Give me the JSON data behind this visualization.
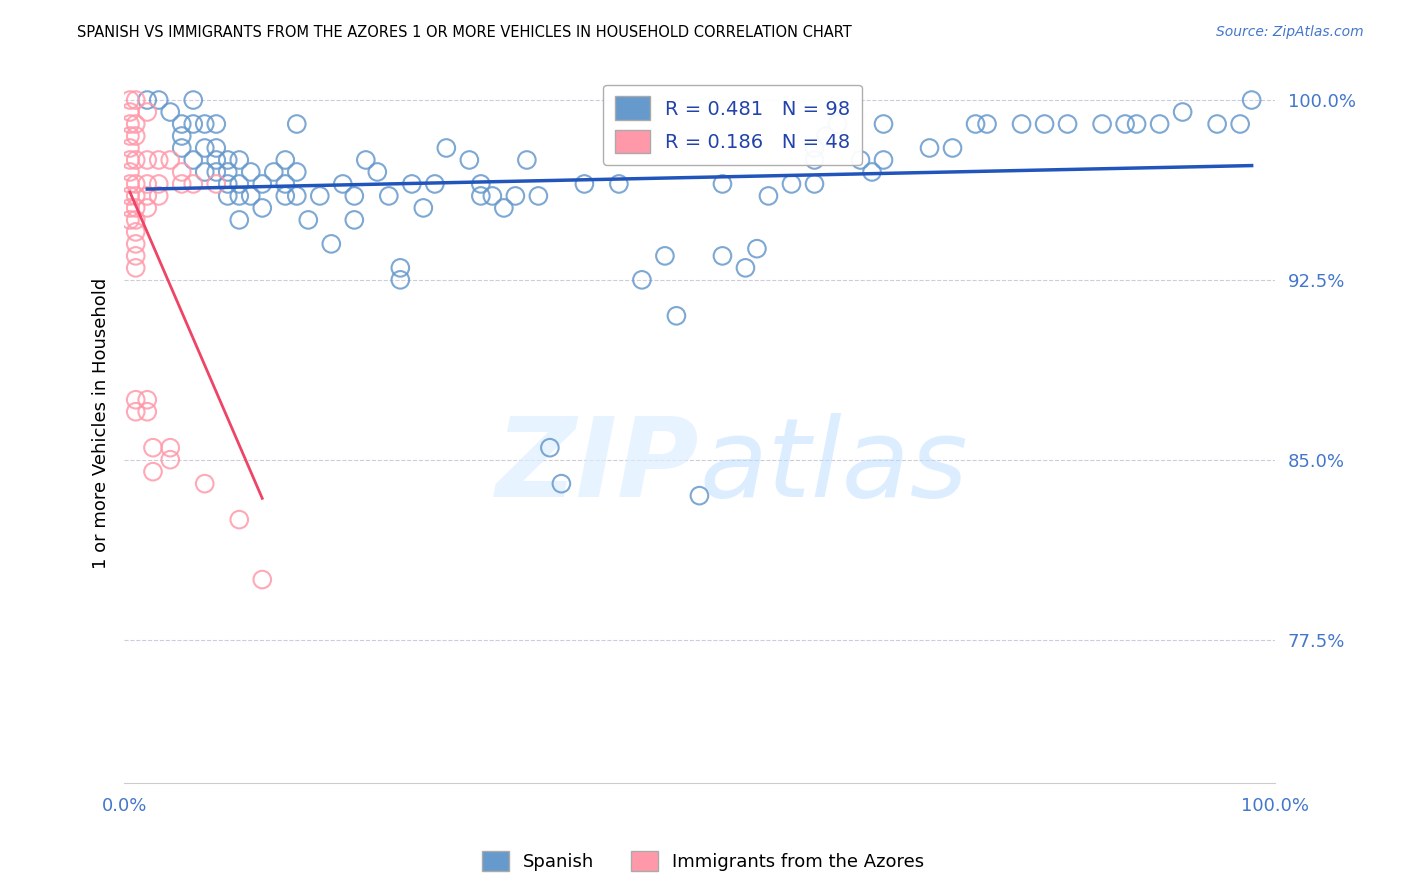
{
  "title": "SPANISH VS IMMIGRANTS FROM THE AZORES 1 OR MORE VEHICLES IN HOUSEHOLD CORRELATION CHART",
  "source": "Source: ZipAtlas.com",
  "ylabel": "1 or more Vehicles in Household",
  "ytick_labels": [
    "100.0%",
    "92.5%",
    "85.0%",
    "77.5%"
  ],
  "ytick_values": [
    1.0,
    0.925,
    0.85,
    0.775
  ],
  "xlim": [
    0.0,
    1.0
  ],
  "ylim": [
    0.715,
    1.015
  ],
  "legend_blue_label": "Spanish",
  "legend_pink_label": "Immigrants from the Azores",
  "R_blue": 0.481,
  "N_blue": 98,
  "R_pink": 0.186,
  "N_pink": 48,
  "blue_color": "#6699CC",
  "pink_color": "#FF99AA",
  "trendline_blue_color": "#2255BB",
  "trendline_pink_color": "#EE4466",
  "watermark_zip": "ZIP",
  "watermark_atlas": "atlas",
  "blue_scatter": [
    [
      0.02,
      1.0
    ],
    [
      0.03,
      1.0
    ],
    [
      0.04,
      0.995
    ],
    [
      0.05,
      0.99
    ],
    [
      0.05,
      0.985
    ],
    [
      0.05,
      0.98
    ],
    [
      0.06,
      1.0
    ],
    [
      0.06,
      0.99
    ],
    [
      0.06,
      0.975
    ],
    [
      0.07,
      0.97
    ],
    [
      0.07,
      0.98
    ],
    [
      0.07,
      0.99
    ],
    [
      0.08,
      0.97
    ],
    [
      0.08,
      0.975
    ],
    [
      0.08,
      0.98
    ],
    [
      0.08,
      0.99
    ],
    [
      0.09,
      0.96
    ],
    [
      0.09,
      0.965
    ],
    [
      0.09,
      0.97
    ],
    [
      0.09,
      0.975
    ],
    [
      0.1,
      0.95
    ],
    [
      0.1,
      0.96
    ],
    [
      0.1,
      0.965
    ],
    [
      0.1,
      0.975
    ],
    [
      0.11,
      0.96
    ],
    [
      0.11,
      0.97
    ],
    [
      0.12,
      0.955
    ],
    [
      0.12,
      0.965
    ],
    [
      0.13,
      0.97
    ],
    [
      0.14,
      0.96
    ],
    [
      0.14,
      0.965
    ],
    [
      0.14,
      0.975
    ],
    [
      0.15,
      0.96
    ],
    [
      0.15,
      0.97
    ],
    [
      0.15,
      0.99
    ],
    [
      0.16,
      0.95
    ],
    [
      0.17,
      0.96
    ],
    [
      0.18,
      0.94
    ],
    [
      0.19,
      0.965
    ],
    [
      0.2,
      0.95
    ],
    [
      0.2,
      0.96
    ],
    [
      0.21,
      0.975
    ],
    [
      0.22,
      0.97
    ],
    [
      0.23,
      0.96
    ],
    [
      0.24,
      0.925
    ],
    [
      0.24,
      0.93
    ],
    [
      0.25,
      0.965
    ],
    [
      0.26,
      0.955
    ],
    [
      0.27,
      0.965
    ],
    [
      0.28,
      0.98
    ],
    [
      0.3,
      0.975
    ],
    [
      0.31,
      0.96
    ],
    [
      0.31,
      0.965
    ],
    [
      0.32,
      0.96
    ],
    [
      0.33,
      0.955
    ],
    [
      0.34,
      0.96
    ],
    [
      0.35,
      0.975
    ],
    [
      0.36,
      0.96
    ],
    [
      0.37,
      0.855
    ],
    [
      0.38,
      0.84
    ],
    [
      0.4,
      0.965
    ],
    [
      0.43,
      0.965
    ],
    [
      0.45,
      0.925
    ],
    [
      0.47,
      0.935
    ],
    [
      0.48,
      0.91
    ],
    [
      0.5,
      0.835
    ],
    [
      0.52,
      0.965
    ],
    [
      0.52,
      0.935
    ],
    [
      0.54,
      0.93
    ],
    [
      0.55,
      0.938
    ],
    [
      0.56,
      0.96
    ],
    [
      0.58,
      0.965
    ],
    [
      0.6,
      0.965
    ],
    [
      0.6,
      0.975
    ],
    [
      0.6,
      0.98
    ],
    [
      0.61,
      0.985
    ],
    [
      0.62,
      0.99
    ],
    [
      0.64,
      0.975
    ],
    [
      0.65,
      0.97
    ],
    [
      0.66,
      0.99
    ],
    [
      0.66,
      0.975
    ],
    [
      0.7,
      0.98
    ],
    [
      0.72,
      0.98
    ],
    [
      0.74,
      0.99
    ],
    [
      0.75,
      0.99
    ],
    [
      0.78,
      0.99
    ],
    [
      0.8,
      0.99
    ],
    [
      0.82,
      0.99
    ],
    [
      0.85,
      0.99
    ],
    [
      0.87,
      0.99
    ],
    [
      0.88,
      0.99
    ],
    [
      0.9,
      0.99
    ],
    [
      0.92,
      0.995
    ],
    [
      0.95,
      0.99
    ],
    [
      0.97,
      0.99
    ],
    [
      0.98,
      1.0
    ]
  ],
  "pink_scatter": [
    [
      0.005,
      1.0
    ],
    [
      0.005,
      0.995
    ],
    [
      0.005,
      0.99
    ],
    [
      0.005,
      0.985
    ],
    [
      0.005,
      0.98
    ],
    [
      0.005,
      0.975
    ],
    [
      0.005,
      0.97
    ],
    [
      0.005,
      0.965
    ],
    [
      0.005,
      0.96
    ],
    [
      0.005,
      0.955
    ],
    [
      0.005,
      0.95
    ],
    [
      0.01,
      1.0
    ],
    [
      0.01,
      0.99
    ],
    [
      0.01,
      0.985
    ],
    [
      0.01,
      0.975
    ],
    [
      0.01,
      0.965
    ],
    [
      0.01,
      0.96
    ],
    [
      0.01,
      0.955
    ],
    [
      0.01,
      0.95
    ],
    [
      0.01,
      0.945
    ],
    [
      0.01,
      0.94
    ],
    [
      0.01,
      0.935
    ],
    [
      0.01,
      0.93
    ],
    [
      0.01,
      0.875
    ],
    [
      0.01,
      0.87
    ],
    [
      0.02,
      0.995
    ],
    [
      0.02,
      0.975
    ],
    [
      0.02,
      0.965
    ],
    [
      0.02,
      0.96
    ],
    [
      0.02,
      0.955
    ],
    [
      0.02,
      0.875
    ],
    [
      0.02,
      0.87
    ],
    [
      0.03,
      0.975
    ],
    [
      0.03,
      0.965
    ],
    [
      0.03,
      0.96
    ],
    [
      0.04,
      0.975
    ],
    [
      0.04,
      0.855
    ],
    [
      0.04,
      0.85
    ],
    [
      0.05,
      0.97
    ],
    [
      0.05,
      0.965
    ],
    [
      0.06,
      0.965
    ],
    [
      0.07,
      0.84
    ],
    [
      0.08,
      0.965
    ],
    [
      0.1,
      0.825
    ],
    [
      0.12,
      0.8
    ],
    [
      0.025,
      0.855
    ],
    [
      0.025,
      0.845
    ]
  ]
}
